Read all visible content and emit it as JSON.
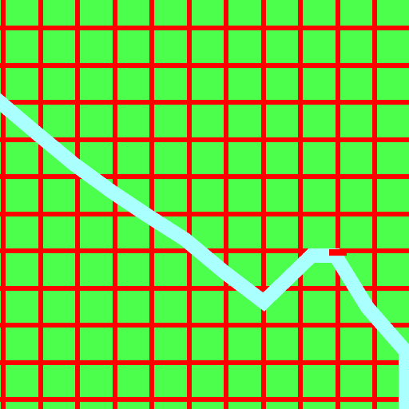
{
  "board": {
    "cell_fill": "#4CFF4C",
    "grid_color": "#FF0000",
    "grid_columns": 11,
    "grid_rows": 11
  },
  "path": {
    "color": "#AAFFFF",
    "cap_color": "#FF0000"
  }
}
